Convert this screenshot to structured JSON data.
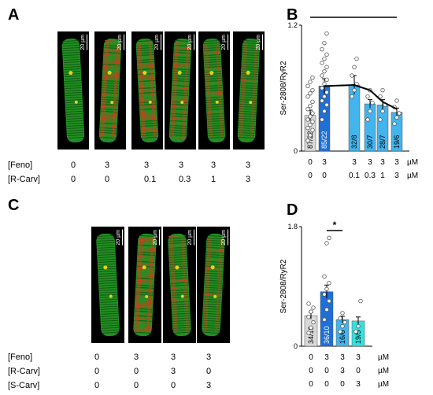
{
  "panels": {
    "a": {
      "letter": "A",
      "scale_label": "20 µm",
      "rows": [
        {
          "label": "[Feno]",
          "values": [
            "0",
            "3",
            "3",
            "3",
            "3",
            "3"
          ]
        },
        {
          "label": "[R-Carv]",
          "values": [
            "0",
            "0",
            "0.1",
            "0.3",
            "1",
            "3"
          ]
        }
      ]
    },
    "b": {
      "letter": "B"
    },
    "c": {
      "letter": "C",
      "scale_label": "20 µm",
      "rows": [
        {
          "label": "[Feno]",
          "values": [
            "0",
            "3",
            "3",
            "3"
          ]
        },
        {
          "label": "[R-Carv]",
          "values": [
            "0",
            "0",
            "3",
            "0"
          ]
        },
        {
          "label": "[S-Carv]",
          "values": [
            "0",
            "0",
            "0",
            "3"
          ]
        }
      ]
    },
    "d": {
      "letter": "D"
    }
  },
  "chart_data": [
    {
      "type": "bar",
      "ylabel": "Ser-2808/RyR2",
      "yticks": [
        "0",
        "1.2"
      ],
      "ylim": [
        0,
        1.2
      ],
      "bars": [
        {
          "value": 0.34,
          "err": 0.05,
          "label": "87/22",
          "color": "#d9d9d9"
        },
        {
          "value": 0.62,
          "err": 0.07,
          "label": "85/22",
          "color": "#1f6fd6"
        },
        {
          "value": 0.63,
          "err": 0.09,
          "label": "32/8",
          "color": "#43b4ec"
        },
        {
          "value": 0.45,
          "err": 0.04,
          "label": "30/7",
          "color": "#43b4ec"
        },
        {
          "value": 0.44,
          "err": 0.05,
          "label": "28/7",
          "color": "#43b4ec"
        },
        {
          "value": 0.37,
          "err": 0.04,
          "label": "19/6",
          "color": "#43b4ec"
        }
      ],
      "points": [
        [
          0.1,
          0.15,
          0.2,
          0.22,
          0.25,
          0.28,
          0.3,
          0.33,
          0.36,
          0.4,
          0.43,
          0.47,
          0.52,
          0.55,
          0.58,
          0.62,
          0.66,
          0.7
        ],
        [
          0.3,
          0.38,
          0.44,
          0.48,
          0.52,
          0.56,
          0.6,
          0.64,
          0.68,
          0.72,
          0.76,
          0.8,
          0.84,
          0.88,
          0.92,
          0.97,
          1.03,
          1.12
        ],
        [
          0.52,
          0.58,
          0.64,
          0.72,
          0.8,
          0.88
        ],
        [
          0.3,
          0.38,
          0.46,
          0.52,
          0.58
        ],
        [
          0.3,
          0.38,
          0.44,
          0.52,
          0.58
        ],
        [
          0.26,
          0.32,
          0.36,
          0.42,
          0.48
        ]
      ],
      "fit_curve": [
        [
          1,
          0.62
        ],
        [
          2,
          0.63
        ],
        [
          3,
          0.58
        ],
        [
          4,
          0.47
        ],
        [
          5,
          0.4
        ]
      ],
      "sig": [
        {
          "label": "***"
        },
        {
          "label": "**"
        }
      ],
      "xrows": [
        [
          "0",
          "3",
          "",
          "3",
          "3",
          "3",
          "3"
        ],
        [
          "0",
          "0",
          "",
          "0.1",
          "0.3",
          "1",
          "3"
        ]
      ],
      "unit": "µM"
    },
    {
      "type": "bar",
      "ylabel": "Ser-2808/RyR2",
      "yticks": [
        "0",
        "1.8"
      ],
      "ylim": [
        0,
        1.8
      ],
      "bars": [
        {
          "value": 0.46,
          "err": 0.05,
          "label": "34/10",
          "color": "#d9d9d9"
        },
        {
          "value": 0.82,
          "err": 0.1,
          "label": "36/10",
          "color": "#1f6fd6"
        },
        {
          "value": 0.4,
          "err": 0.05,
          "label": "16/6",
          "color": "#43b4ec"
        },
        {
          "value": 0.38,
          "err": 0.06,
          "label": "19/5",
          "color": "#33e1e1"
        }
      ],
      "points": [
        [
          0.2,
          0.28,
          0.36,
          0.44,
          0.52,
          0.58,
          0.64
        ],
        [
          0.4,
          0.55,
          0.68,
          0.78,
          0.86,
          0.95,
          1.05,
          1.55,
          1.63
        ],
        [
          0.22,
          0.3,
          0.36,
          0.42,
          0.5
        ],
        [
          0.22,
          0.3,
          0.68
        ]
      ],
      "sig": [
        {
          "label": "*"
        },
        {
          "label": "**"
        },
        {
          "label": "*"
        }
      ],
      "xrows": [
        [
          "0",
          "3",
          "3",
          "3"
        ],
        [
          "0",
          "0",
          "3",
          "0"
        ],
        [
          "0",
          "0",
          "0",
          "3"
        ]
      ],
      "unit": "µM"
    }
  ],
  "colors": {
    "cell_green": "#2fbf2f",
    "cell_red": "#d43a1a",
    "cell_yellow": "#e6d21a"
  }
}
